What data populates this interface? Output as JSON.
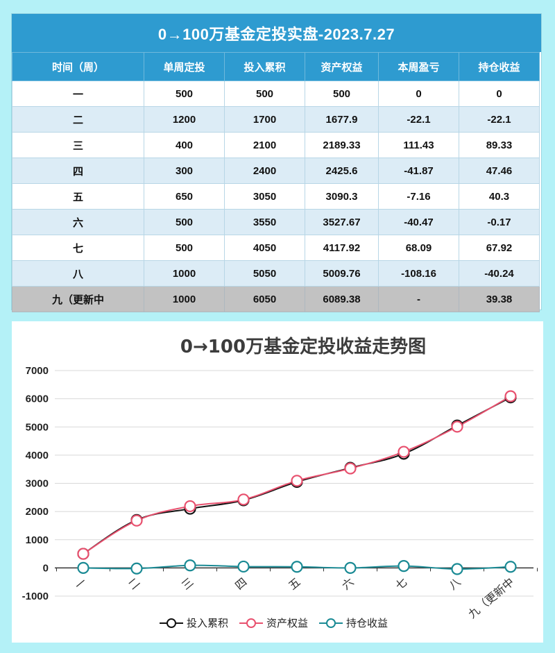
{
  "table": {
    "title": "0→100万基金定投实盘-2023.7.27",
    "headers": [
      "时间（周）",
      "单周定投",
      "投入累积",
      "资产权益",
      "本周盈亏",
      "持仓收益"
    ],
    "rows": [
      [
        "一",
        "500",
        "500",
        "500",
        "0",
        "0"
      ],
      [
        "二",
        "1200",
        "1700",
        "1677.9",
        "-22.1",
        "-22.1"
      ],
      [
        "三",
        "400",
        "2100",
        "2189.33",
        "111.43",
        "89.33"
      ],
      [
        "四",
        "300",
        "2400",
        "2425.6",
        "-41.87",
        "47.46"
      ],
      [
        "五",
        "650",
        "3050",
        "3090.3",
        "-7.16",
        "40.3"
      ],
      [
        "六",
        "500",
        "3550",
        "3527.67",
        "-40.47",
        "-0.17"
      ],
      [
        "七",
        "500",
        "4050",
        "4117.92",
        "68.09",
        "67.92"
      ],
      [
        "八",
        "1000",
        "5050",
        "5009.76",
        "-108.16",
        "-40.24"
      ],
      [
        "九（更新中",
        "1000",
        "6050",
        "6089.38",
        "-",
        "39.38"
      ]
    ]
  },
  "chart_data": {
    "type": "line",
    "title": "0→100万基金定投收益走势图",
    "categories": [
      "一",
      "二",
      "三",
      "四",
      "五",
      "六",
      "七",
      "八",
      "九（更新中"
    ],
    "series": [
      {
        "name": "投入累积",
        "color": "#111111",
        "values": [
          500,
          1700,
          2100,
          2400,
          3050,
          3550,
          4050,
          5050,
          6050
        ]
      },
      {
        "name": "资产权益",
        "color": "#e8506e",
        "values": [
          500,
          1677.9,
          2189.33,
          2425.6,
          3090.3,
          3527.67,
          4117.92,
          5009.76,
          6089.38
        ]
      },
      {
        "name": "持仓收益",
        "color": "#1a8a94",
        "values": [
          0,
          -22.1,
          89.33,
          47.46,
          40.3,
          -0.17,
          67.92,
          -40.24,
          39.38
        ]
      }
    ],
    "ylim": [
      -1000,
      7000
    ],
    "yticks": [
      7000,
      6000,
      5000,
      4000,
      3000,
      2000,
      1000,
      0,
      -1000
    ],
    "grid": true,
    "legend_position": "bottom"
  },
  "colors": {
    "page_background": "#b4f1f7",
    "header_blue": "#2e9bd0",
    "row_alt": "#dcecf6",
    "pending_row": "#c2c2c2"
  }
}
